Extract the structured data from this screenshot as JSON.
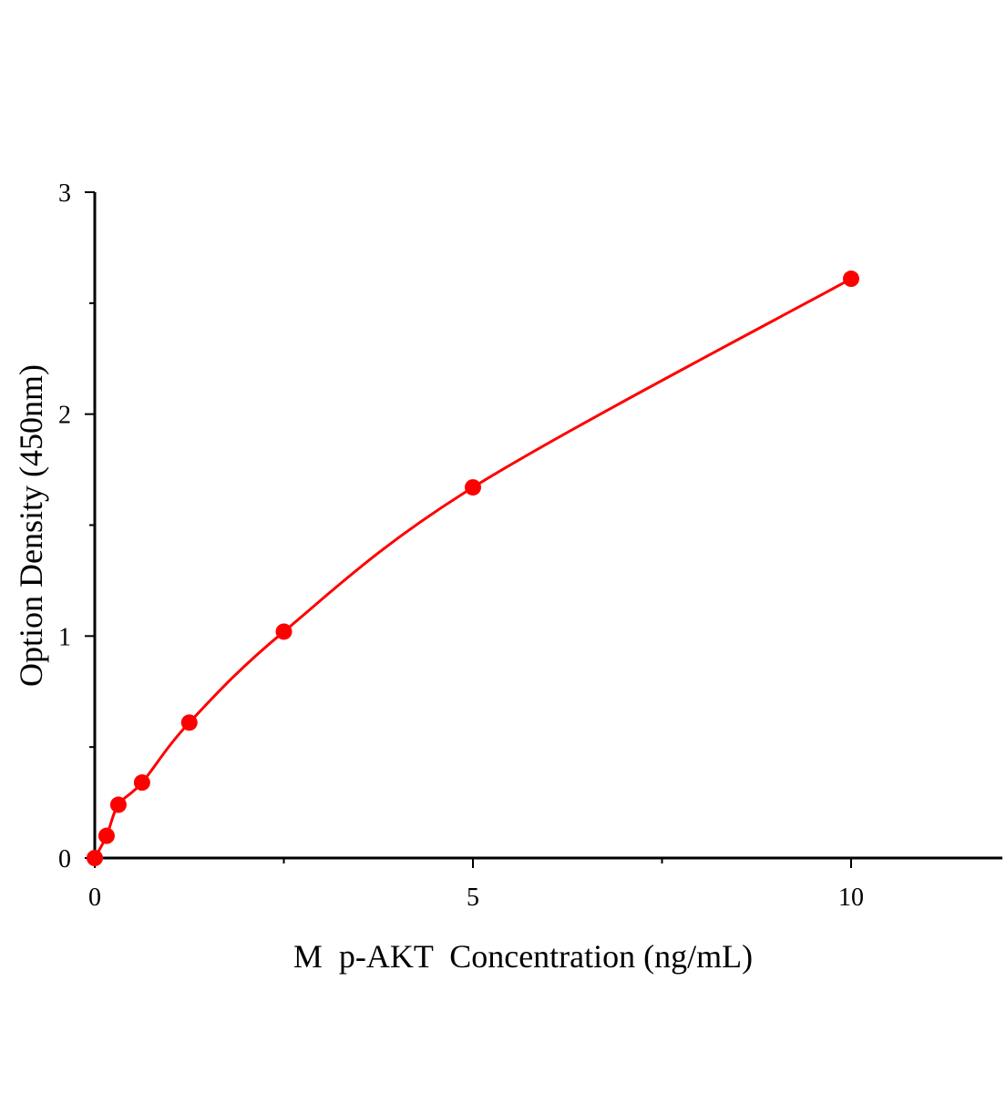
{
  "chart_data": {
    "type": "scatter",
    "title": "",
    "xlabel": "M  p-AKT  Concentration (ng/mL)",
    "ylabel": "Option Density (450nm)",
    "xlim": [
      0,
      12
    ],
    "ylim": [
      0,
      3
    ],
    "xticks": [
      0,
      5,
      10
    ],
    "xtick_labels": [
      "0",
      "5",
      "10"
    ],
    "yticks": [
      0,
      1,
      2,
      3
    ],
    "ytick_labels": [
      "0",
      "1",
      "2",
      "3"
    ],
    "grid": false,
    "color": "#ff0000",
    "series": [
      {
        "x": [
          0,
          0.156,
          0.3125,
          0.625,
          1.25,
          2.5,
          5,
          10
        ],
        "y": [
          0,
          0.1,
          0.24,
          0.34,
          0.61,
          1.02,
          1.67,
          2.61
        ],
        "fit_line": true
      }
    ]
  }
}
